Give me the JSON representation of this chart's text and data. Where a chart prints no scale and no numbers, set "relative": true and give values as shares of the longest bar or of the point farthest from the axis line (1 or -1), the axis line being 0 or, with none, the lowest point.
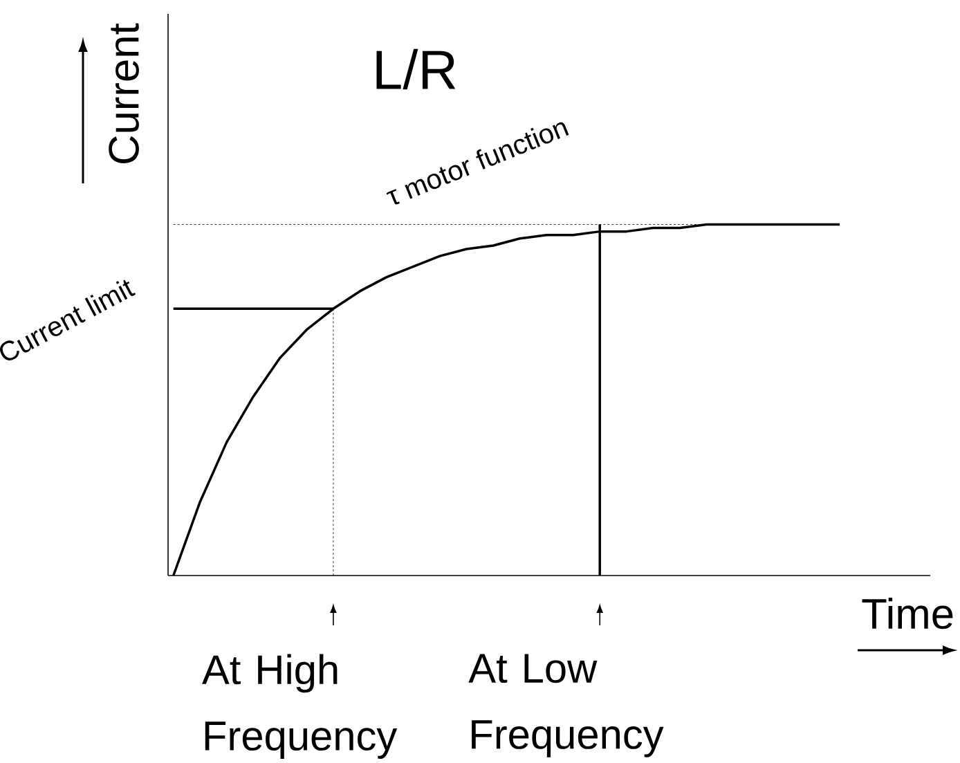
{
  "chart_data": {
    "type": "line",
    "relative": true,
    "xlabel": "Time",
    "ylabel": "Current",
    "categories": [
      null,
      null,
      null,
      null,
      null,
      null,
      null,
      null,
      null,
      null,
      null,
      null,
      null,
      null,
      null,
      null,
      null,
      null,
      null,
      null,
      null,
      null,
      null,
      null,
      null,
      null
    ],
    "series": [
      {
        "color": "#000000",
        "line_style": "solid",
        "values": [
          0,
          0.21,
          0.38,
          0.51,
          0.62,
          0.7,
          0.76,
          0.81,
          0.85,
          0.88,
          0.91,
          0.93,
          0.94,
          0.96,
          0.97,
          0.97,
          0.98,
          0.98,
          0.99,
          0.99,
          1,
          1,
          1,
          1,
          1,
          1
        ]
      },
      {
        "color": "#000000",
        "line_style": "solid",
        "values": [
          0.76,
          0.76,
          0.76,
          0.76,
          0.76,
          0.76,
          0.76,
          null,
          null,
          null,
          null,
          null,
          null,
          null,
          null,
          null,
          null,
          null,
          null,
          null,
          null,
          null,
          null,
          null,
          null,
          null
        ]
      },
      {
        "color": "#000000",
        "line_style": "dashed",
        "values": [
          1,
          1,
          1,
          1,
          1,
          1,
          1,
          1,
          1,
          1,
          1,
          1,
          1,
          1,
          1,
          1,
          1,
          1,
          1,
          1,
          1,
          1,
          1,
          1,
          1,
          1
        ]
      }
    ],
    "annotations": [
      "L/R",
      "τ motor function",
      "Current limit",
      "At High Frequency",
      "At Low Frequency"
    ]
  }
}
